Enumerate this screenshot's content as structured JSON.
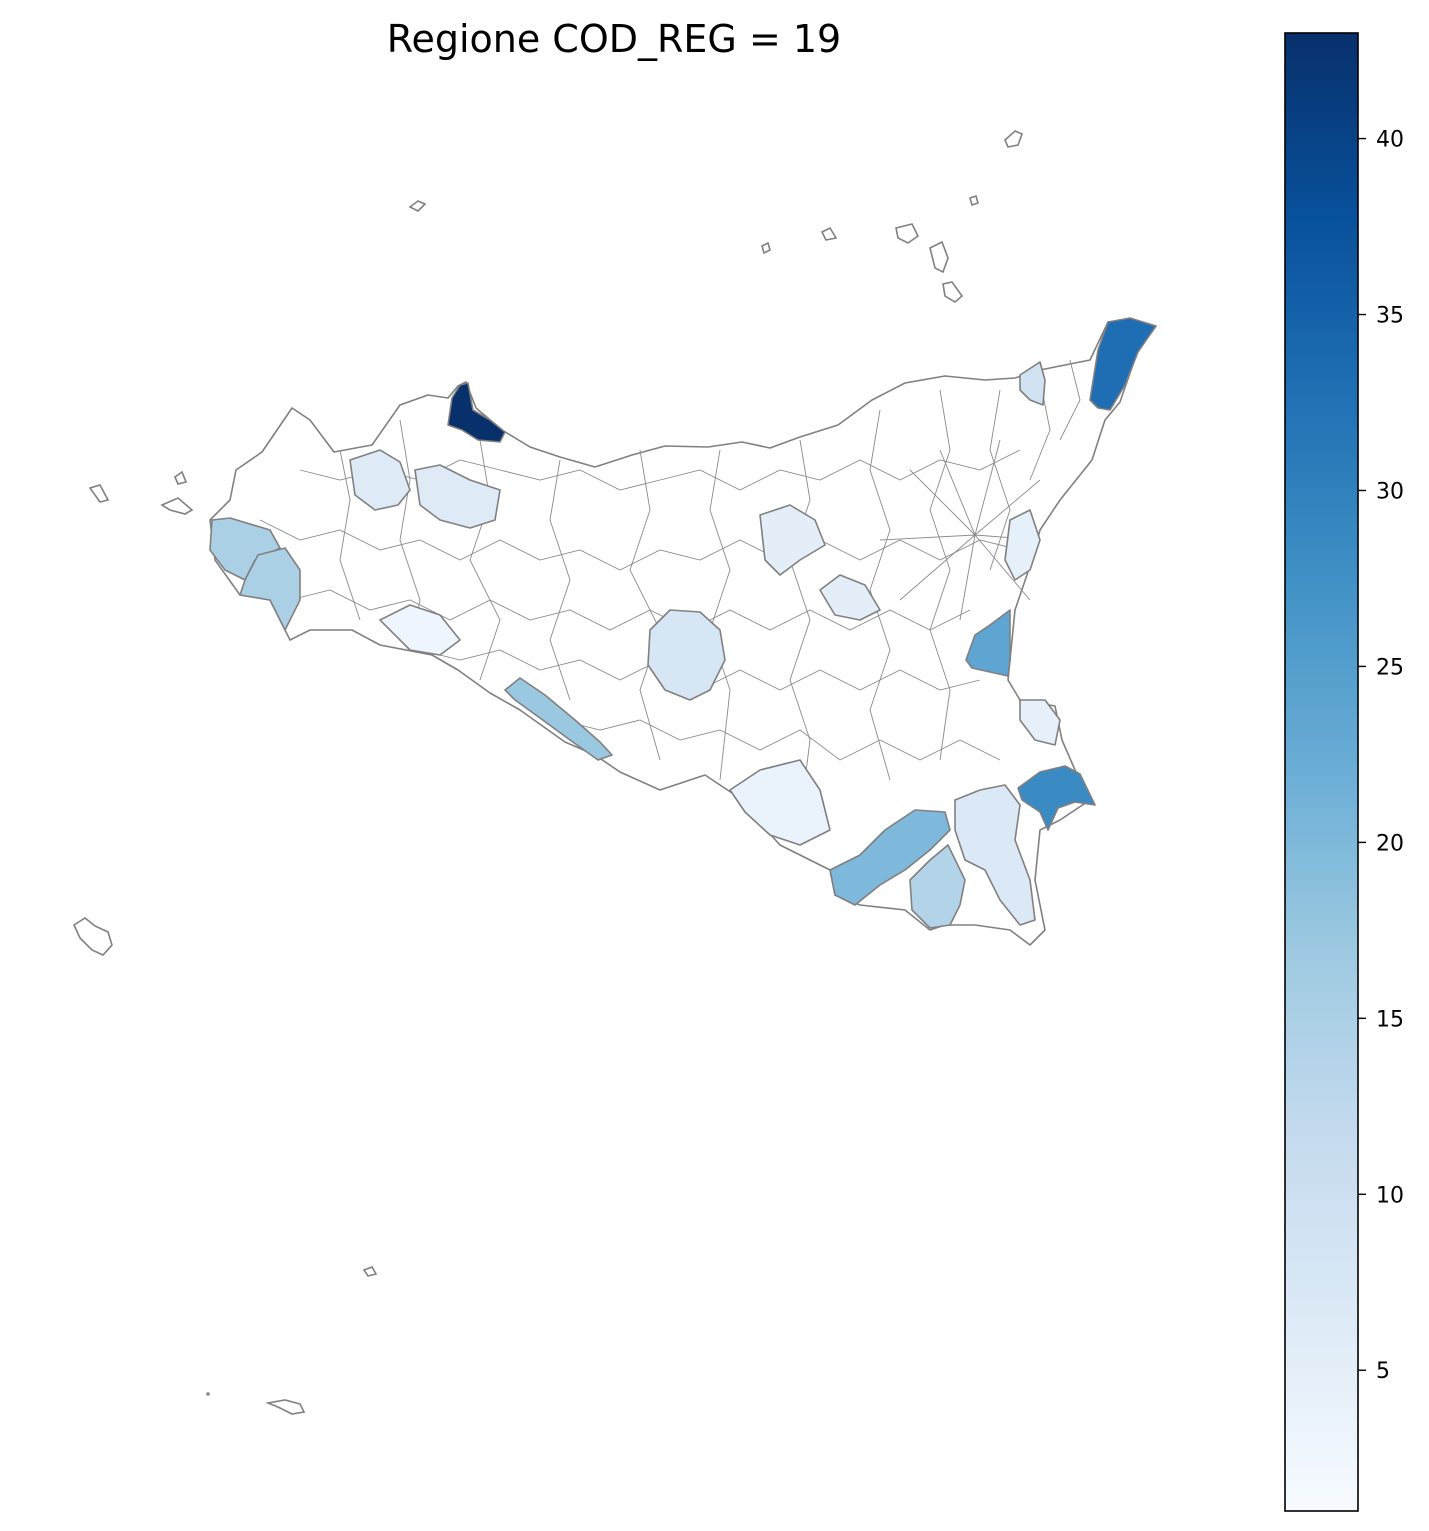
{
  "title": "Regione COD_REG = 19",
  "colorbar": {
    "colormap": "Blues",
    "range": [
      1,
      43
    ],
    "ticks": [
      {
        "value": 5,
        "label": "5"
      },
      {
        "value": 10,
        "label": "10"
      },
      {
        "value": 15,
        "label": "15"
      },
      {
        "value": 20,
        "label": "20"
      },
      {
        "value": 25,
        "label": "25"
      },
      {
        "value": 30,
        "label": "30"
      },
      {
        "value": 35,
        "label": "35"
      },
      {
        "value": 40,
        "label": "40"
      }
    ]
  },
  "map": {
    "region_code": 19,
    "highlighted_areas": [
      {
        "id": "north-coast-dark",
        "value": 43
      },
      {
        "id": "northeast-tip",
        "value": 35
      },
      {
        "id": "southeast-port",
        "value": 28
      },
      {
        "id": "east-coast-mid",
        "value": 23
      },
      {
        "id": "south-coast-plain",
        "value": 20
      },
      {
        "id": "south-coast-west",
        "value": 18
      },
      {
        "id": "west-coast-a",
        "value": 15
      },
      {
        "id": "west-coast-b",
        "value": 15
      },
      {
        "id": "south-coast-strip",
        "value": 14
      },
      {
        "id": "center-area",
        "value": 9
      },
      {
        "id": "southeast-inland",
        "value": 8
      },
      {
        "id": "north-west-area",
        "value": 6
      },
      {
        "id": "north-center-area",
        "value": 6
      },
      {
        "id": "northeast-area",
        "value": 8
      },
      {
        "id": "east-central-area",
        "value": 5
      },
      {
        "id": "south-east-area",
        "value": 4
      }
    ]
  }
}
